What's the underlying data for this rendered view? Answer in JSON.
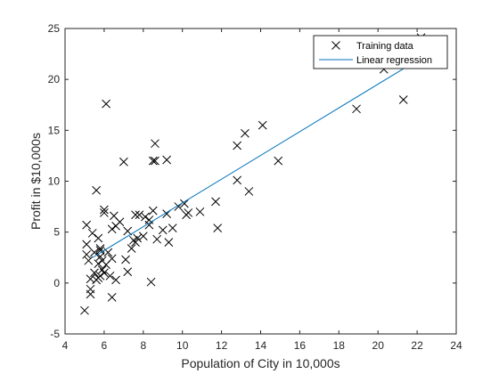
{
  "chart_data": {
    "type": "scatter",
    "title": "",
    "xlabel": "Population of City in 10,000s",
    "ylabel": "Profit in $10,000s",
    "xlim": [
      4,
      24
    ],
    "ylim": [
      -5,
      25
    ],
    "xticks": [
      4,
      6,
      8,
      10,
      12,
      14,
      16,
      18,
      20,
      22,
      24
    ],
    "yticks": [
      -5,
      0,
      5,
      10,
      15,
      20,
      25
    ],
    "grid": false,
    "legend_position": "top-right",
    "series": [
      {
        "name": "Training data",
        "type": "scatter",
        "marker": "x",
        "color": "#000000",
        "points": [
          [
            5.0,
            -2.7
          ],
          [
            5.1,
            5.7
          ],
          [
            5.1,
            3.8
          ],
          [
            5.1,
            2.8
          ],
          [
            5.2,
            2.2
          ],
          [
            5.3,
            0.4
          ],
          [
            5.3,
            -0.6
          ],
          [
            5.3,
            -1.1
          ],
          [
            5.4,
            4.9
          ],
          [
            5.5,
            3.0
          ],
          [
            5.5,
            1.0
          ],
          [
            5.6,
            0.3
          ],
          [
            5.6,
            9.1
          ],
          [
            5.7,
            4.4
          ],
          [
            5.7,
            1.9
          ],
          [
            5.7,
            0.5
          ],
          [
            5.8,
            3.4
          ],
          [
            5.8,
            3.2
          ],
          [
            5.8,
            2.6
          ],
          [
            5.8,
            0.7
          ],
          [
            5.9,
            2.2
          ],
          [
            5.9,
            1.3
          ],
          [
            6.0,
            7.2
          ],
          [
            6.0,
            6.9
          ],
          [
            6.0,
            1.0
          ],
          [
            6.1,
            17.6
          ],
          [
            6.1,
            1.8
          ],
          [
            6.2,
            3.0
          ],
          [
            6.3,
            0.7
          ],
          [
            6.4,
            2.4
          ],
          [
            6.4,
            5.3
          ],
          [
            6.4,
            -1.4
          ],
          [
            6.5,
            6.6
          ],
          [
            6.6,
            5.6
          ],
          [
            6.6,
            0.3
          ],
          [
            6.8,
            6.0
          ],
          [
            7.0,
            11.9
          ],
          [
            7.1,
            2.3
          ],
          [
            7.2,
            5.1
          ],
          [
            7.2,
            1.1
          ],
          [
            7.4,
            3.4
          ],
          [
            7.5,
            4.2
          ],
          [
            7.6,
            4.0
          ],
          [
            7.6,
            6.7
          ],
          [
            7.7,
            4.4
          ],
          [
            7.8,
            6.7
          ],
          [
            8.0,
            4.6
          ],
          [
            8.1,
            6.5
          ],
          [
            8.3,
            5.7
          ],
          [
            8.3,
            6.2
          ],
          [
            8.4,
            0.1
          ],
          [
            8.5,
            12.0
          ],
          [
            8.5,
            7.1
          ],
          [
            8.6,
            13.7
          ],
          [
            8.6,
            12.0
          ],
          [
            8.7,
            4.3
          ],
          [
            9.0,
            5.2
          ],
          [
            9.2,
            12.1
          ],
          [
            9.2,
            6.8
          ],
          [
            9.3,
            4.0
          ],
          [
            9.5,
            5.4
          ],
          [
            9.8,
            7.5
          ],
          [
            10.1,
            7.8
          ],
          [
            10.2,
            6.7
          ],
          [
            10.3,
            6.9
          ],
          [
            10.9,
            7.0
          ],
          [
            11.7,
            8.0
          ],
          [
            11.8,
            5.4
          ],
          [
            12.8,
            13.5
          ],
          [
            12.8,
            10.1
          ],
          [
            13.2,
            14.7
          ],
          [
            13.4,
            9.0
          ],
          [
            14.1,
            15.5
          ],
          [
            14.9,
            12.0
          ],
          [
            18.9,
            17.1
          ],
          [
            20.3,
            21.0
          ],
          [
            21.3,
            18.0
          ],
          [
            22.2,
            24.1
          ]
        ]
      },
      {
        "name": "Linear regression",
        "type": "line",
        "color": "#0072BD",
        "points": [
          [
            5.4,
            2.5
          ],
          [
            22.2,
            22.1
          ]
        ]
      }
    ]
  }
}
